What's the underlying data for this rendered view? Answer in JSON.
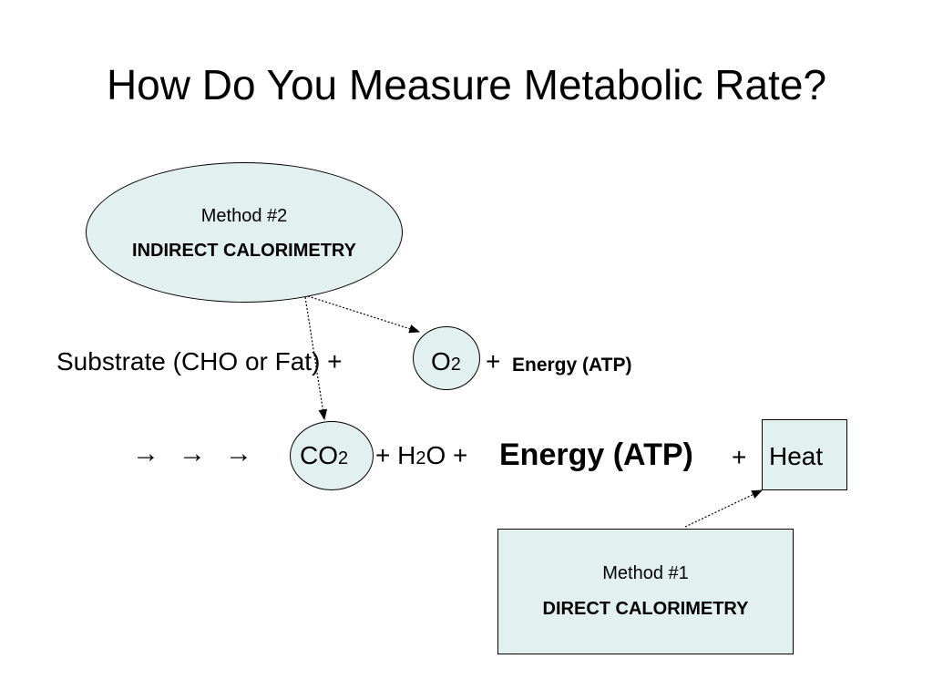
{
  "title": "How Do You Measure Metabolic Rate?",
  "method2": {
    "label": "Method #2",
    "name": "INDIRECT CALORIMETRY"
  },
  "method1": {
    "label": "Method #1",
    "name": "DIRECT CALORIMETRY"
  },
  "equation_line1": {
    "substrate": "Substrate (CHO or Fat) +",
    "o2_main": "O",
    "o2_sub": "2",
    "plus": "+",
    "energy": "Energy (ATP)"
  },
  "equation_line2": {
    "arrows": [
      "→",
      "→",
      "→"
    ],
    "co2_main": "CO",
    "co2_sub": "2",
    "plus1": "+ H",
    "h2o_sub": "2",
    "h2o_tail": "O +",
    "energy": "Energy (ATP)",
    "plus2": "+",
    "heat": "Heat"
  },
  "colors": {
    "shape_fill": "#e2f0f0",
    "stroke": "#000000"
  }
}
